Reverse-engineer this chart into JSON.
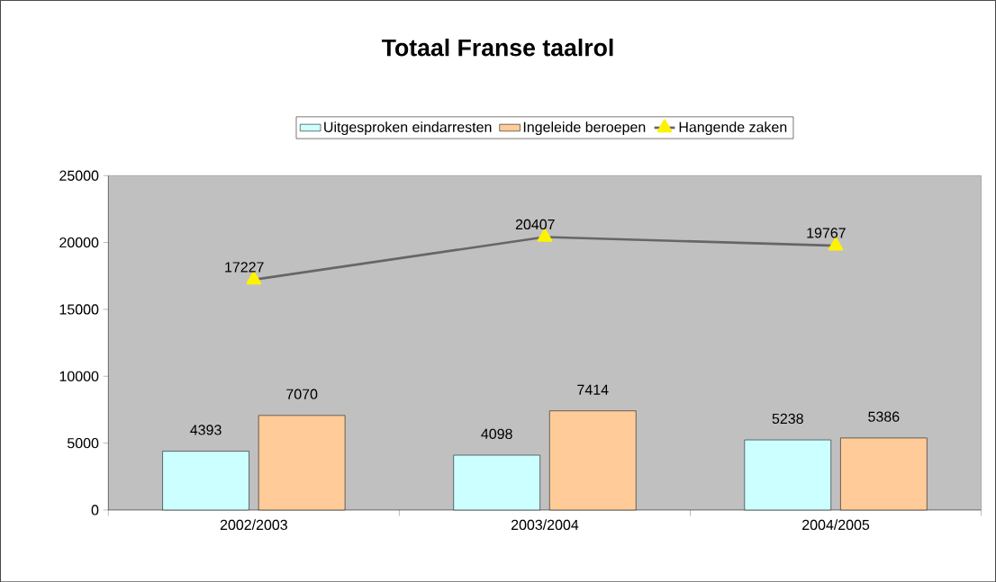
{
  "chart_data": {
    "type": "bar",
    "title": "Totaal Franse taalrol",
    "categories": [
      "2002/2003",
      "2003/2004",
      "2004/2005"
    ],
    "series": [
      {
        "name": "Uitgesproken eindarresten",
        "color": "#ccffff",
        "values": [
          4393,
          4098,
          5238
        ]
      },
      {
        "name": "Ingeleide beroepen",
        "color": "#ffcc99",
        "values": [
          7070,
          7414,
          5386
        ]
      },
      {
        "name": "Hangende zaken",
        "type": "line",
        "color": "#666666",
        "values": [
          17227,
          20407,
          19767
        ]
      }
    ],
    "ylim": [
      0,
      25000
    ],
    "yticks": [
      0,
      5000,
      10000,
      15000,
      20000,
      25000
    ],
    "data_labels": true,
    "legend": "top",
    "marker": "triangle"
  }
}
